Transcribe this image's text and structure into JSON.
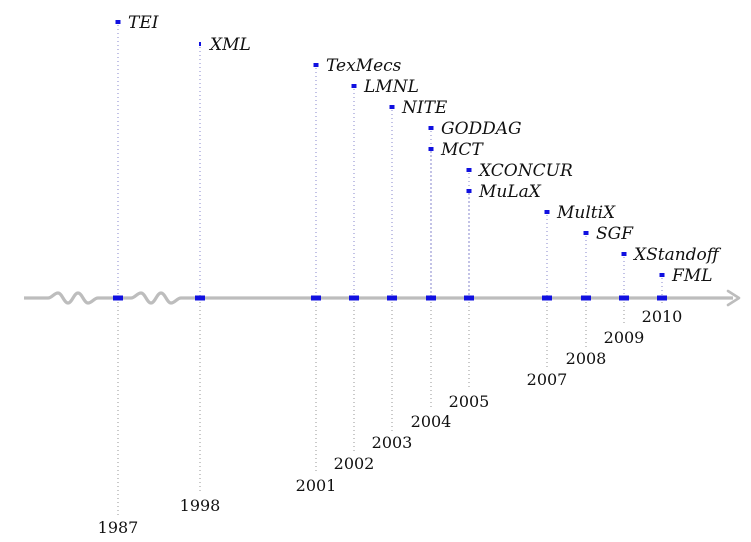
{
  "axis": {
    "color": "#bdbdbd",
    "tick_color": "#1010e0",
    "marker_color": "#1010e0",
    "break_marks": 2,
    "direction": "right-arrow"
  },
  "events": [
    {
      "label": "TEI",
      "year": "1987"
    },
    {
      "label": "XML",
      "year": "1998"
    },
    {
      "label": "TexMecs",
      "year": "2001"
    },
    {
      "label": "LMNL",
      "year": "2002"
    },
    {
      "label": "NITE",
      "year": "2003"
    },
    {
      "label": "GODDAG",
      "year": "2004"
    },
    {
      "label": "MCT",
      "year": "2004"
    },
    {
      "label": "XCONCUR",
      "year": "2005"
    },
    {
      "label": "MuLaX",
      "year": "2005"
    },
    {
      "label": "MultiX",
      "year": "2007"
    },
    {
      "label": "SGF",
      "year": "2008"
    },
    {
      "label": "XStandoff",
      "year": "2009"
    },
    {
      "label": "FML",
      "year": "2010"
    }
  ],
  "year_labels": [
    "1987",
    "1998",
    "2001",
    "2002",
    "2003",
    "2004",
    "2005",
    "2007",
    "2008",
    "2009",
    "2010"
  ]
}
